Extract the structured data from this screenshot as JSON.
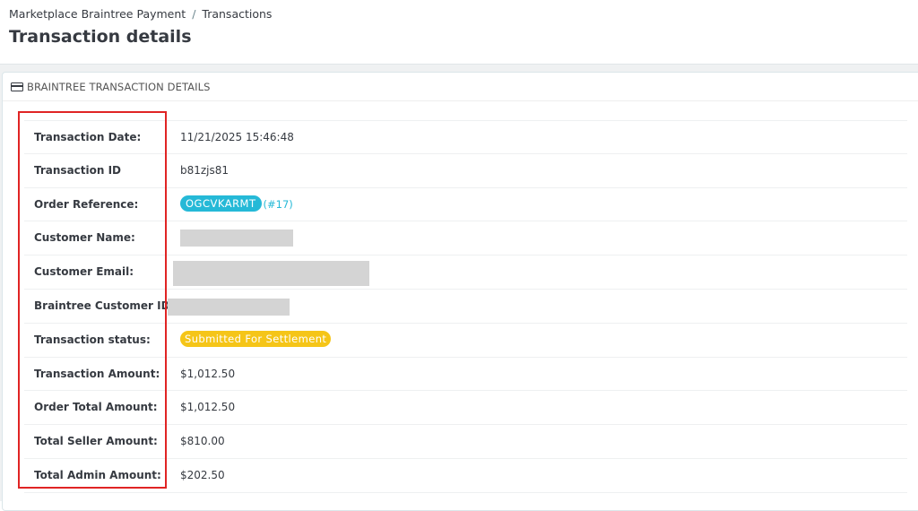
{
  "header": {
    "breadcrumb": [
      "Marketplace Braintree Payment",
      "Transactions"
    ],
    "breadcrumb_separator": "/",
    "title": "Transaction details"
  },
  "panel": {
    "icon": "credit-card-icon",
    "title": "BRAINTREE TRANSACTION DETAILS"
  },
  "details": {
    "transaction_date": {
      "label": "Transaction Date:",
      "value": "11/21/2025 15:46:48"
    },
    "transaction_id": {
      "label": "Transaction ID",
      "value": "b81zjs81"
    },
    "order_reference": {
      "label": "Order Reference:",
      "value": "OGCVKARMT",
      "order_number": "(#17)"
    },
    "customer_name": {
      "label": "Customer Name:",
      "redacted": true
    },
    "customer_email": {
      "label": "Customer Email:",
      "redacted": true
    },
    "braintree_customer_id": {
      "label": "Braintree Customer ID:",
      "redacted": true
    },
    "transaction_status": {
      "label": "Transaction status:",
      "value": "Submitted For Settlement"
    },
    "transaction_amount": {
      "label": "Transaction Amount:",
      "value": "$1,012.50"
    },
    "order_total_amount": {
      "label": "Order Total Amount:",
      "value": "$1,012.50"
    },
    "total_seller_amount": {
      "label": "Total Seller Amount:",
      "value": "$810.00"
    },
    "total_admin_amount": {
      "label": "Total Admin Amount:",
      "value": "$202.50"
    }
  },
  "colors": {
    "accent": "#25b9d7",
    "status_badge": "#f5c518",
    "highlight": "#e02424",
    "redaction": "#d4d4d4"
  }
}
